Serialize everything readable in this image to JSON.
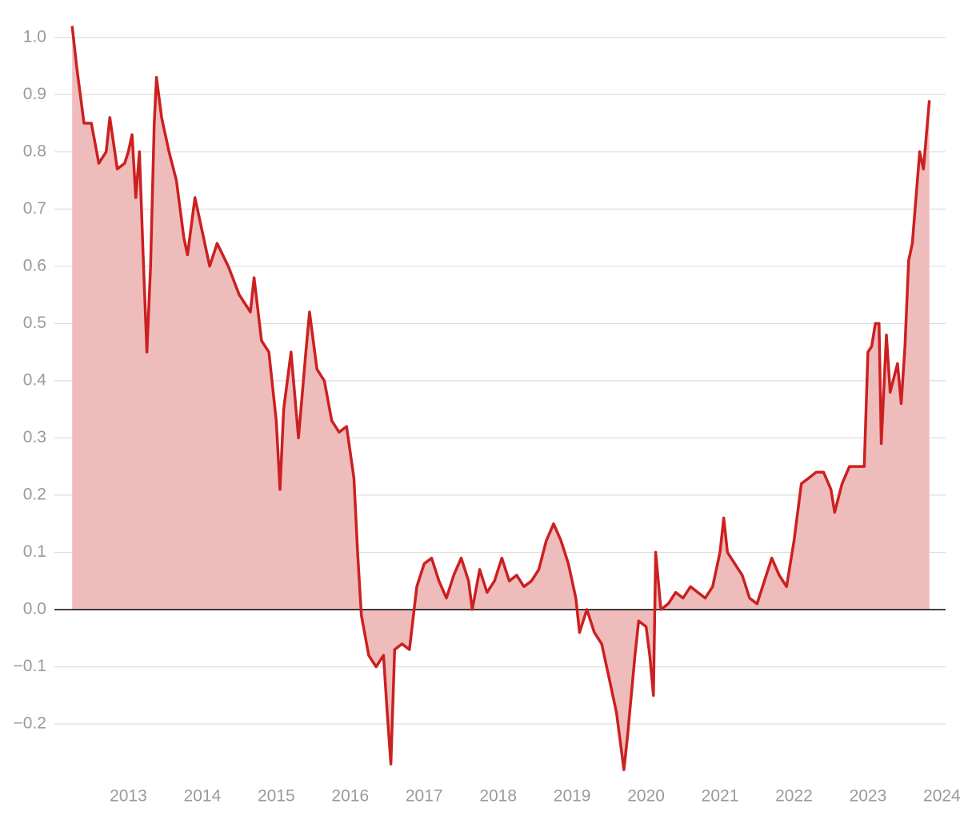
{
  "chart_data": {
    "type": "area",
    "x": [
      2012.24,
      2012.3,
      2012.4,
      2012.5,
      2012.6,
      2012.7,
      2012.75,
      2012.85,
      2012.95,
      2013.0,
      2013.05,
      2013.1,
      2013.15,
      2013.2,
      2013.25,
      2013.3,
      2013.35,
      2013.38,
      2013.45,
      2013.55,
      2013.65,
      2013.75,
      2013.8,
      2013.9,
      2014.0,
      2014.1,
      2014.2,
      2014.35,
      2014.5,
      2014.65,
      2014.7,
      2014.8,
      2014.9,
      2015.0,
      2015.05,
      2015.1,
      2015.2,
      2015.3,
      2015.4,
      2015.45,
      2015.55,
      2015.65,
      2015.75,
      2015.85,
      2015.95,
      2016.05,
      2016.1,
      2016.15,
      2016.25,
      2016.35,
      2016.45,
      2016.5,
      2016.55,
      2016.6,
      2016.7,
      2016.8,
      2016.9,
      2017.0,
      2017.1,
      2017.2,
      2017.3,
      2017.4,
      2017.5,
      2017.6,
      2017.65,
      2017.75,
      2017.85,
      2017.95,
      2018.05,
      2018.15,
      2018.25,
      2018.35,
      2018.45,
      2018.55,
      2018.65,
      2018.75,
      2018.85,
      2018.95,
      2019.05,
      2019.1,
      2019.2,
      2019.3,
      2019.4,
      2019.5,
      2019.6,
      2019.7,
      2019.75,
      2019.8,
      2019.85,
      2019.9,
      2020.0,
      2020.05,
      2020.1,
      2020.13,
      2020.2,
      2020.3,
      2020.4,
      2020.5,
      2020.6,
      2020.7,
      2020.8,
      2020.9,
      2021.0,
      2021.05,
      2021.1,
      2021.2,
      2021.3,
      2021.4,
      2021.5,
      2021.6,
      2021.7,
      2021.8,
      2021.9,
      2022.0,
      2022.1,
      2022.2,
      2022.3,
      2022.4,
      2022.5,
      2022.55,
      2022.65,
      2022.75,
      2022.85,
      2022.95,
      2023.0,
      2023.05,
      2023.1,
      2023.15,
      2023.18,
      2023.25,
      2023.3,
      2023.4,
      2023.45,
      2023.5,
      2023.55,
      2023.6,
      2023.65,
      2023.7,
      2023.75,
      2023.83
    ],
    "series": [
      {
        "color": "#cc2020",
        "fill": "#efbcbc",
        "values": [
          1.02,
          0.95,
          0.85,
          0.85,
          0.78,
          0.8,
          0.86,
          0.77,
          0.78,
          0.8,
          0.83,
          0.72,
          0.8,
          0.62,
          0.45,
          0.6,
          0.85,
          0.93,
          0.86,
          0.8,
          0.75,
          0.65,
          0.62,
          0.72,
          0.66,
          0.6,
          0.64,
          0.6,
          0.55,
          0.52,
          0.58,
          0.47,
          0.45,
          0.33,
          0.21,
          0.35,
          0.45,
          0.3,
          0.45,
          0.52,
          0.42,
          0.4,
          0.33,
          0.31,
          0.32,
          0.23,
          0.1,
          -0.01,
          -0.08,
          -0.1,
          -0.08,
          -0.18,
          -0.27,
          -0.07,
          -0.06,
          -0.07,
          0.04,
          0.08,
          0.09,
          0.05,
          0.02,
          0.06,
          0.09,
          0.05,
          0.0,
          0.07,
          0.03,
          0.05,
          0.09,
          0.05,
          0.06,
          0.04,
          0.05,
          0.07,
          0.12,
          0.15,
          0.12,
          0.08,
          0.02,
          -0.04,
          0.0,
          -0.04,
          -0.06,
          -0.12,
          -0.18,
          -0.28,
          -0.22,
          -0.15,
          -0.08,
          -0.02,
          -0.03,
          -0.08,
          -0.15,
          0.1,
          0.0,
          0.01,
          0.03,
          0.02,
          0.04,
          0.03,
          0.02,
          0.04,
          0.1,
          0.16,
          0.1,
          0.08,
          0.06,
          0.02,
          0.01,
          0.05,
          0.09,
          0.06,
          0.04,
          0.12,
          0.22,
          0.23,
          0.24,
          0.24,
          0.21,
          0.17,
          0.22,
          0.25,
          0.25,
          0.25,
          0.45,
          0.46,
          0.5,
          0.5,
          0.29,
          0.48,
          0.38,
          0.43,
          0.36,
          0.46,
          0.61,
          0.64,
          0.72,
          0.8,
          0.77,
          0.89
        ]
      }
    ],
    "xlim": [
      2012,
      2024.05
    ],
    "xticks": [
      2013,
      2014,
      2015,
      2016,
      2017,
      2018,
      2019,
      2020,
      2021,
      2022,
      2023,
      2024
    ],
    "ylim": [
      -0.3,
      1.05
    ],
    "yticks": [
      {
        "value": -0.2,
        "label": "−0.2"
      },
      {
        "value": -0.1,
        "label": "−0.1"
      },
      {
        "value": 0,
        "label": "0.0"
      },
      0.1,
      0.2,
      0.3,
      0.4,
      0.5,
      0.6,
      0.7,
      0.8,
      0.9,
      {
        "value": 1,
        "label": "1.0"
      }
    ],
    "grid": true
  }
}
